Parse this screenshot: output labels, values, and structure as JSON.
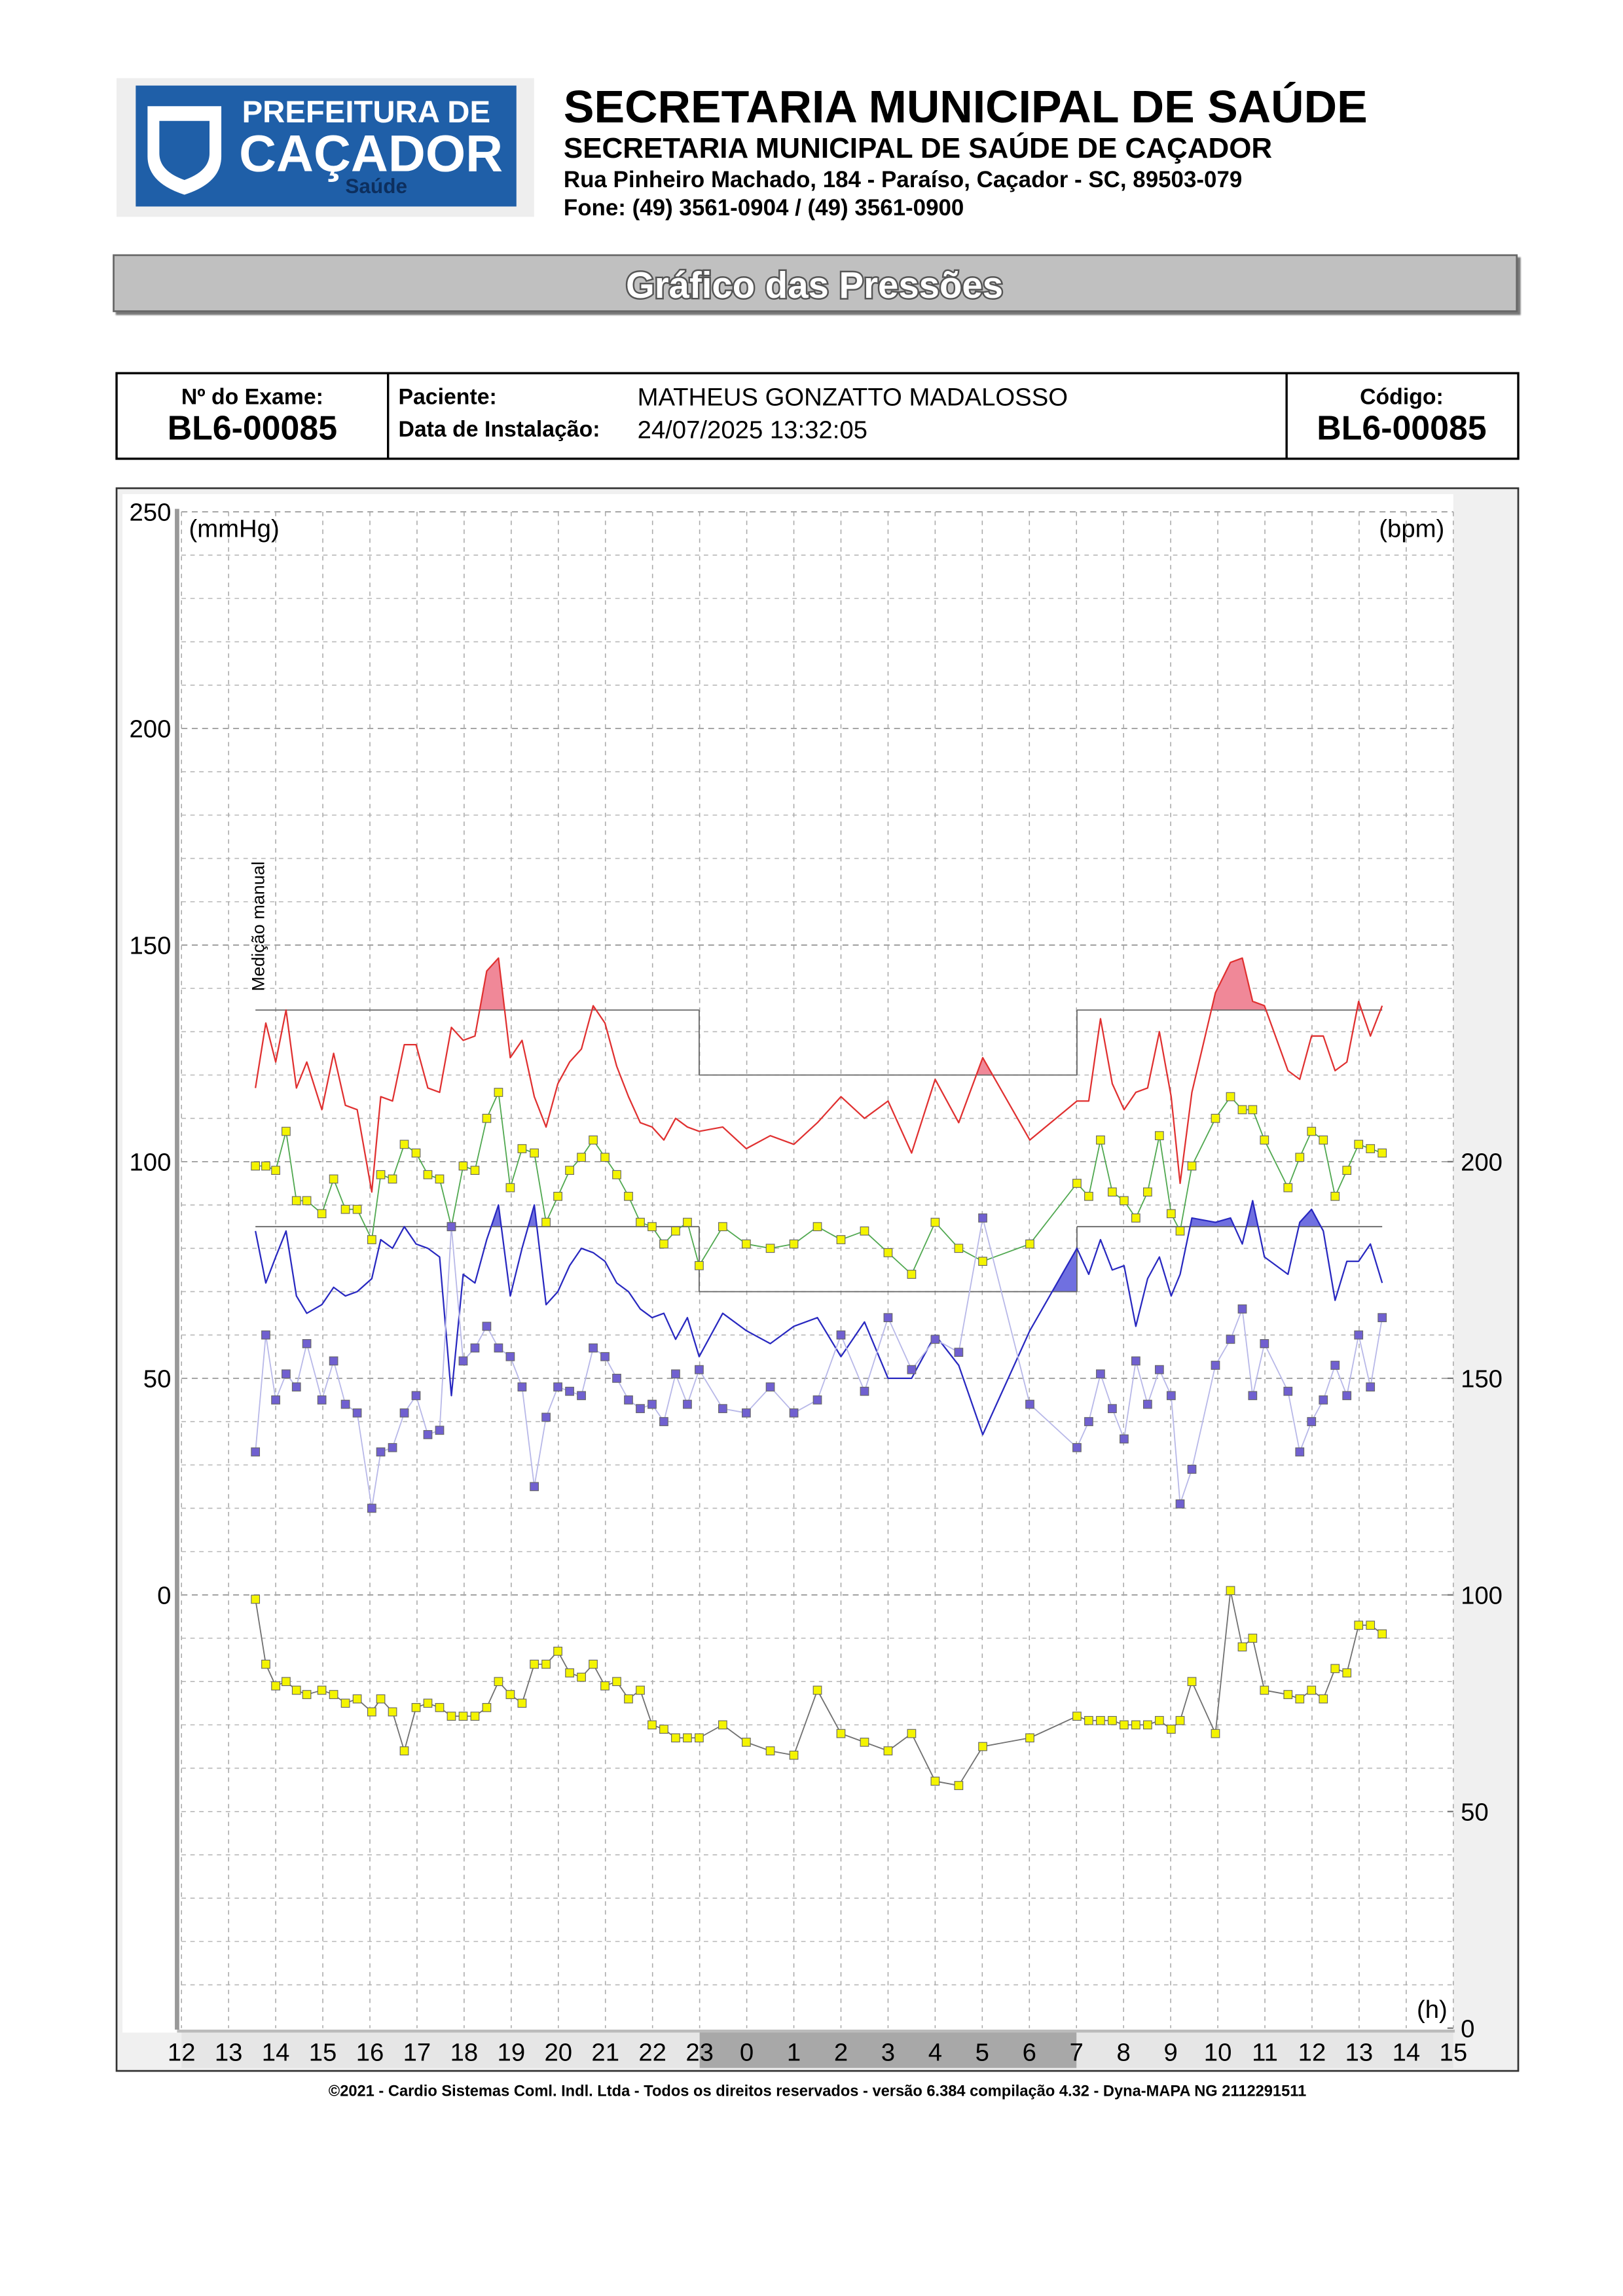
{
  "header": {
    "logo_line1": "PREFEITURA DE",
    "logo_line2": "CAÇADOR",
    "logo_line3": "Saúde",
    "title": "SECRETARIA MUNICIPAL DE SAÚDE",
    "subtitle": "SECRETARIA MUNICIPAL DE SAÚDE DE CAÇADOR",
    "address": "Rua Pinheiro Machado, 184 - Paraíso, Caçador - SC, 89503-079",
    "phone": "Fone: (49) 3561-0904 / (49) 3561-0900"
  },
  "banner": "Gráfico das Pressões",
  "exam": {
    "exam_label": "Nº do Exame:",
    "exam_number": "BL6-00085",
    "patient_label": "Paciente:",
    "patient": "MATHEUS GONZATTO MADALOSSO",
    "install_label": "Data de Instalação:",
    "install_date": "24/07/2025 13:32:05",
    "code_label": "Código:",
    "code": "BL6-00085"
  },
  "footer": "©2021 - Cardio Sistemas Coml. Indl. Ltda - Todos os direitos reservados - versão 6.384 compilação 4.32 - Dyna-MAPA NG 2112291511",
  "chart_data": {
    "type": "line",
    "ylabel": "(mmHg)",
    "y2label": "(bpm)",
    "xlabel": "(h)",
    "annotation": "Medição manual",
    "grid": true,
    "night_period": [
      23,
      31
    ],
    "xlim": [
      12,
      39
    ],
    "xticks": [
      12,
      13,
      14,
      15,
      16,
      17,
      18,
      19,
      20,
      21,
      22,
      23,
      {
        "value": 24,
        "label": "0"
      },
      {
        "value": 25,
        "label": "1"
      },
      {
        "value": 26,
        "label": "2"
      },
      {
        "value": 27,
        "label": "3"
      },
      {
        "value": 28,
        "label": "4"
      },
      {
        "value": 29,
        "label": "5"
      },
      {
        "value": 30,
        "label": "6"
      },
      {
        "value": 31,
        "label": "7"
      },
      {
        "value": 32,
        "label": "8"
      },
      {
        "value": 33,
        "label": "9"
      },
      {
        "value": 34,
        "label": "10"
      },
      {
        "value": 35,
        "label": "11"
      },
      {
        "value": 36,
        "label": "12"
      },
      {
        "value": 37,
        "label": "13"
      },
      {
        "value": 38,
        "label": "14"
      },
      {
        "value": 39,
        "label": "15"
      }
    ],
    "ylim": [
      -100,
      250
    ],
    "yticks": [
      0,
      50,
      100,
      150,
      200,
      250
    ],
    "y2lim": [
      0,
      350
    ],
    "y2ticks": [
      0,
      50,
      100,
      150,
      200
    ],
    "x": [
      13.57,
      13.79,
      14.0,
      14.22,
      14.44,
      14.66,
      14.98,
      15.23,
      15.48,
      15.73,
      16.04,
      16.23,
      16.48,
      16.73,
      16.98,
      17.23,
      17.48,
      17.73,
      17.98,
      18.23,
      18.48,
      18.73,
      18.98,
      19.23,
      19.49,
      19.74,
      19.99,
      20.24,
      20.49,
      20.74,
      20.99,
      21.24,
      21.49,
      21.74,
      21.99,
      22.24,
      22.49,
      22.74,
      22.99,
      23.49,
      23.99,
      24.5,
      25.0,
      25.5,
      26.0,
      26.5,
      27.0,
      27.5,
      28.0,
      28.5,
      29.01,
      30.01,
      31.01,
      31.26,
      31.51,
      31.76,
      32.01,
      32.26,
      32.51,
      32.76,
      33.01,
      33.2,
      33.45,
      33.95,
      34.27,
      34.52,
      34.74,
      34.99,
      35.49,
      35.74,
      35.99,
      36.24,
      36.49,
      36.74,
      36.99,
      37.24,
      37.49
    ],
    "series": [
      {
        "color": "#e03030",
        "fill": "#f08898",
        "limits": [
          {
            "from": 13.57,
            "to": 22.99,
            "value": 135
          },
          {
            "from": 22.99,
            "to": 31.01,
            "value": 120
          },
          {
            "from": 31.01,
            "to": 37.49,
            "value": 135
          }
        ],
        "values": [
          117,
          132,
          123,
          135,
          117,
          123,
          112,
          125,
          113,
          112,
          93,
          115,
          114,
          127,
          127,
          117,
          116,
          131,
          128,
          129,
          144,
          147,
          124,
          128,
          115,
          108,
          118,
          123,
          126,
          136,
          132,
          122,
          115,
          109,
          108,
          105,
          110,
          108,
          107,
          108,
          103,
          106,
          104,
          109,
          115,
          110,
          114,
          102,
          119,
          109,
          124,
          105,
          114,
          114,
          133,
          118,
          112,
          116,
          117,
          130,
          115,
          95,
          116,
          139,
          146,
          147,
          137,
          136,
          121,
          119,
          129,
          129,
          121,
          123,
          137,
          129,
          136
        ]
      },
      {
        "color": "#2828c0",
        "fill": "#7070e0",
        "limits": [
          {
            "from": 13.57,
            "to": 22.99,
            "value": 85
          },
          {
            "from": 22.99,
            "to": 31.01,
            "value": 70
          },
          {
            "from": 31.01,
            "to": 37.49,
            "value": 85
          }
        ],
        "values": [
          84,
          72,
          78,
          84,
          69,
          65,
          67,
          71,
          69,
          70,
          73,
          82,
          80,
          85,
          81,
          80,
          78,
          46,
          74,
          72,
          82,
          90,
          69,
          80,
          90,
          67,
          70,
          76,
          80,
          79,
          77,
          72,
          70,
          66,
          64,
          65,
          59,
          64,
          55,
          65,
          61,
          58,
          62,
          64,
          55,
          63,
          50,
          50,
          60,
          53,
          37,
          61,
          80,
          74,
          82,
          75,
          76,
          62,
          73,
          78,
          69,
          74,
          87,
          86,
          87,
          81,
          91,
          78,
          74,
          86,
          89,
          84,
          68,
          77,
          77,
          81,
          72
        ]
      },
      {
        "color": "#50a850",
        "marker_color": "#f4f400",
        "values": [
          99,
          99,
          98,
          107,
          91,
          91,
          88,
          96,
          89,
          89,
          82,
          97,
          96,
          104,
          102,
          97,
          96,
          85,
          99,
          98,
          110,
          116,
          94,
          103,
          102,
          86,
          92,
          98,
          101,
          105,
          101,
          97,
          92,
          86,
          85,
          81,
          84,
          86,
          76,
          85,
          81,
          80,
          81,
          85,
          82,
          84,
          79,
          74,
          86,
          80,
          77,
          81,
          95,
          92,
          105,
          93,
          91,
          87,
          93,
          106,
          88,
          84,
          99,
          110,
          115,
          112,
          112,
          105,
          94,
          101,
          107,
          105,
          92,
          98,
          104,
          103,
          102
        ]
      },
      {
        "color": "#b8b8e8",
        "marker_color": "#7060d0",
        "values": [
          33,
          60,
          45,
          51,
          48,
          58,
          45,
          54,
          44,
          42,
          20,
          33,
          34,
          42,
          46,
          37,
          38,
          85,
          54,
          57,
          62,
          57,
          55,
          48,
          25,
          41,
          48,
          47,
          46,
          57,
          55,
          50,
          45,
          43,
          44,
          40,
          51,
          44,
          52,
          43,
          42,
          48,
          42,
          45,
          60,
          47,
          64,
          52,
          59,
          56,
          87,
          44,
          34,
          40,
          51,
          43,
          36,
          54,
          44,
          52,
          46,
          21,
          29,
          53,
          59,
          66,
          46,
          58,
          47,
          33,
          40,
          45,
          53,
          46,
          60,
          48,
          64
        ]
      },
      {
        "color": "#707070",
        "marker_color": "#f4f400",
        "axis": "y2",
        "values": [
          99,
          84,
          79,
          80,
          78,
          77,
          78,
          77,
          75,
          76,
          73,
          76,
          73,
          64,
          74,
          75,
          74,
          72,
          72,
          72,
          74,
          80,
          77,
          75,
          84,
          84,
          87,
          82,
          81,
          84,
          79,
          80,
          76,
          78,
          70,
          69,
          67,
          67,
          67,
          70,
          66,
          64,
          63,
          78,
          68,
          66,
          64,
          68,
          57,
          56,
          65,
          67,
          72,
          71,
          71,
          71,
          70,
          70,
          70,
          71,
          69,
          71,
          80,
          68,
          101,
          88,
          90,
          78,
          77,
          76,
          78,
          76,
          83,
          82,
          93,
          93,
          91
        ]
      }
    ]
  }
}
